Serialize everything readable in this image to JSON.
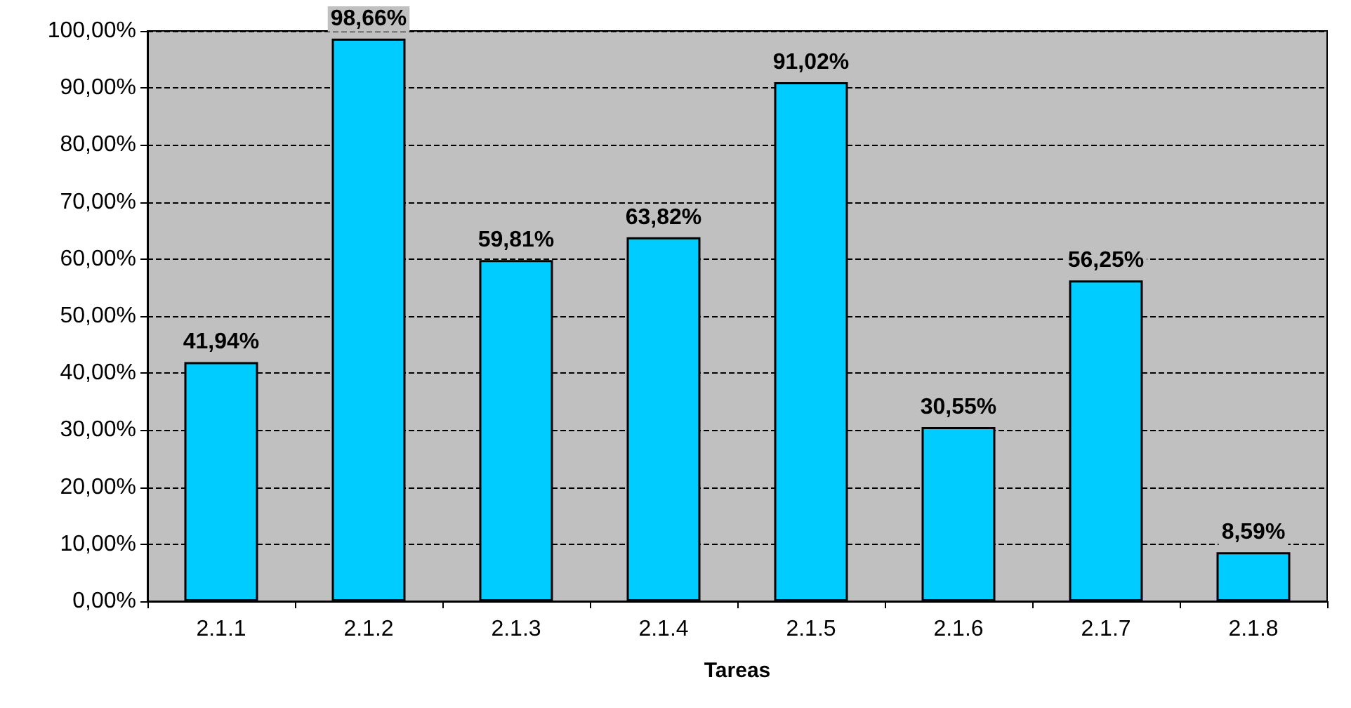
{
  "chart_data": {
    "type": "bar",
    "xlabel": "Tareas",
    "categories": [
      "2.1.1",
      "2.1.2",
      "2.1.3",
      "2.1.4",
      "2.1.5",
      "2.1.6",
      "2.1.7",
      "2.1.8"
    ],
    "values": [
      41.94,
      98.66,
      59.81,
      63.82,
      91.02,
      30.55,
      56.25,
      8.59
    ],
    "value_labels": [
      "41,94%",
      "98,66%",
      "59,81%",
      "63,82%",
      "91,02%",
      "30,55%",
      "56,25%",
      "8,59%"
    ],
    "color": "#00ccff",
    "ylim": [
      0,
      100
    ],
    "yticks": [
      {
        "value": 0,
        "label": "0,00%"
      },
      {
        "value": 10,
        "label": "10,00%"
      },
      {
        "value": 20,
        "label": "20,00%"
      },
      {
        "value": 30,
        "label": "30,00%"
      },
      {
        "value": 40,
        "label": "40,00%"
      },
      {
        "value": 50,
        "label": "50,00%"
      },
      {
        "value": 60,
        "label": "60,00%"
      },
      {
        "value": 70,
        "label": "70,00%"
      },
      {
        "value": 80,
        "label": "80,00%"
      },
      {
        "value": 90,
        "label": "90,00%"
      },
      {
        "value": 100,
        "label": "100,00%"
      }
    ],
    "grid": "y"
  }
}
